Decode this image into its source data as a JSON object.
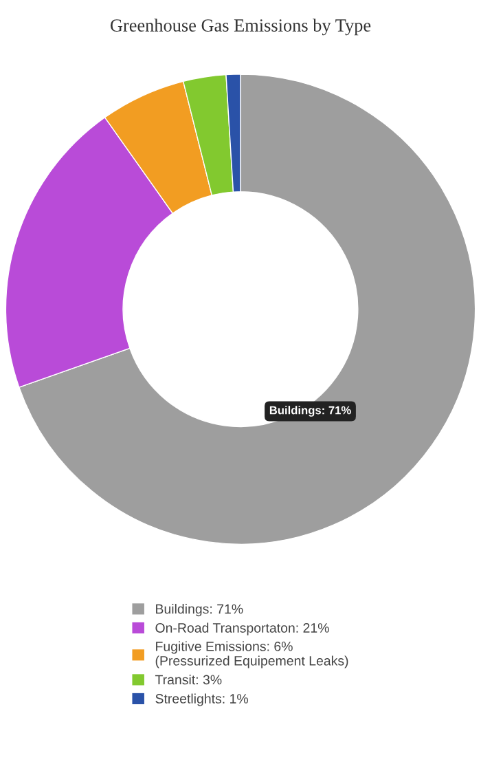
{
  "chart_data": {
    "type": "donut",
    "title": "Greenhouse Gas Emissions by Type",
    "categories": [
      "Buildings: 71%",
      "On-Road Transportaton: 21%",
      "Fugitive Emissions: 6%\n(Pressurized Equipement Leaks)",
      "Transit: 3%",
      "Streetlights: 1%"
    ],
    "values": [
      71,
      21,
      6,
      3,
      1
    ],
    "colors": [
      "#9e9e9e",
      "#b94bd8",
      "#f29d22",
      "#82c92f",
      "#2a52a8"
    ],
    "annotations": [
      "Buildings: 71%"
    ],
    "legend": "bottom"
  }
}
